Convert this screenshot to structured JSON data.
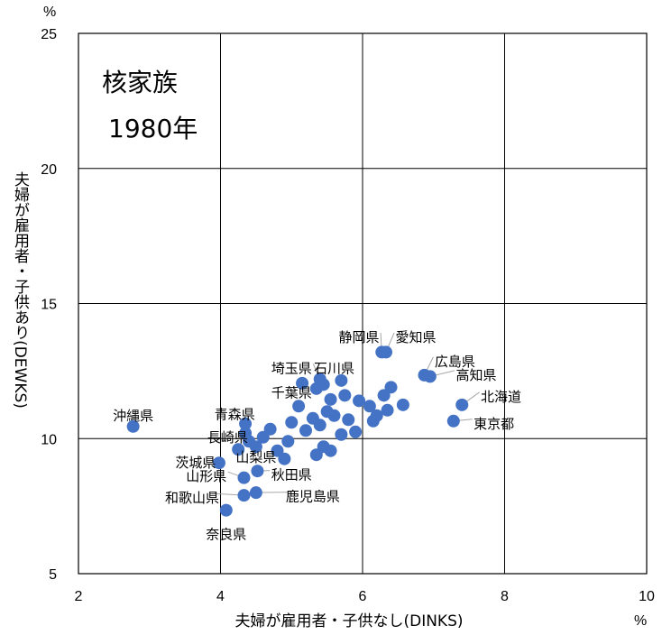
{
  "chart_data": {
    "type": "scatter",
    "xlabel": "夫婦が雇用者・子供なし(DINKS)",
    "ylabel": "夫婦が雇用者・子供あり(DEWKS)",
    "x_unit": "%",
    "y_unit": "%",
    "xlim": [
      2,
      10
    ],
    "ylim": [
      5,
      25
    ],
    "x_ticks": [
      "2",
      "4",
      "6",
      "8",
      "10"
    ],
    "y_ticks": [
      "5",
      "10",
      "15",
      "20",
      "25"
    ],
    "grid": true,
    "annotation": [
      "核家族",
      "1980年"
    ],
    "marker_color": "#4472C4",
    "points": [
      {
        "x": 2.77,
        "y": 10.45,
        "label": "沖縄県",
        "lx": 2.77,
        "ly": 10.85
      },
      {
        "x": 4.08,
        "y": 7.35,
        "label": "奈良県",
        "lx": 4.08,
        "ly": 6.45
      },
      {
        "x": 4.33,
        "y": 7.9,
        "label": "和歌山県",
        "lx": 3.6,
        "ly": 7.8
      },
      {
        "x": 4.5,
        "y": 8.0,
        "label": "鹿児島県",
        "lx": 5.3,
        "ly": 7.85
      },
      {
        "x": 3.98,
        "y": 9.1,
        "label": "茨城県",
        "lx": 3.65,
        "ly": 9.1
      },
      {
        "x": 4.33,
        "y": 8.55,
        "label": "山形県",
        "lx": 3.8,
        "ly": 8.6
      },
      {
        "x": 4.52,
        "y": 8.8,
        "label": "秋田県",
        "lx": 5.0,
        "ly": 8.65
      },
      {
        "x": 4.25,
        "y": 9.6,
        "label": "山梨県",
        "lx": 4.5,
        "ly": 9.3
      },
      {
        "x": 4.35,
        "y": 10.2,
        "label": "長崎県",
        "lx": 4.1,
        "ly": 10.05
      },
      {
        "x": 4.35,
        "y": 10.55,
        "label": "青森県",
        "lx": 4.2,
        "ly": 10.9
      },
      {
        "x": 4.4,
        "y": 9.9,
        "label": "",
        "lx": 0,
        "ly": 0
      },
      {
        "x": 4.5,
        "y": 9.7,
        "label": "",
        "lx": 0,
        "ly": 0
      },
      {
        "x": 4.6,
        "y": 10.05,
        "label": "",
        "lx": 0,
        "ly": 0
      },
      {
        "x": 4.7,
        "y": 10.35,
        "label": "",
        "lx": 0,
        "ly": 0
      },
      {
        "x": 4.8,
        "y": 9.55,
        "label": "",
        "lx": 0,
        "ly": 0
      },
      {
        "x": 4.9,
        "y": 9.25,
        "label": "",
        "lx": 0,
        "ly": 0
      },
      {
        "x": 4.95,
        "y": 9.9,
        "label": "",
        "lx": 0,
        "ly": 0
      },
      {
        "x": 5.0,
        "y": 10.6,
        "label": "",
        "lx": 0,
        "ly": 0
      },
      {
        "x": 5.1,
        "y": 11.2,
        "label": "",
        "lx": 0,
        "ly": 0
      },
      {
        "x": 5.2,
        "y": 10.3,
        "label": "",
        "lx": 0,
        "ly": 0
      },
      {
        "x": 5.3,
        "y": 10.75,
        "label": "",
        "lx": 0,
        "ly": 0
      },
      {
        "x": 5.35,
        "y": 9.4,
        "label": "",
        "lx": 0,
        "ly": 0
      },
      {
        "x": 5.45,
        "y": 9.7,
        "label": "",
        "lx": 0,
        "ly": 0
      },
      {
        "x": 5.55,
        "y": 9.55,
        "label": "",
        "lx": 0,
        "ly": 0
      },
      {
        "x": 5.4,
        "y": 10.5,
        "label": "",
        "lx": 0,
        "ly": 0
      },
      {
        "x": 5.5,
        "y": 11.0,
        "label": "",
        "lx": 0,
        "ly": 0
      },
      {
        "x": 5.6,
        "y": 10.85,
        "label": "",
        "lx": 0,
        "ly": 0
      },
      {
        "x": 5.7,
        "y": 10.15,
        "label": "",
        "lx": 0,
        "ly": 0
      },
      {
        "x": 5.8,
        "y": 10.7,
        "label": "",
        "lx": 0,
        "ly": 0
      },
      {
        "x": 5.9,
        "y": 10.25,
        "label": "",
        "lx": 0,
        "ly": 0
      },
      {
        "x": 5.55,
        "y": 11.45,
        "label": "",
        "lx": 0,
        "ly": 0
      },
      {
        "x": 5.45,
        "y": 12.0,
        "label": "",
        "lx": 0,
        "ly": 0
      },
      {
        "x": 5.35,
        "y": 11.85,
        "label": "千葉県",
        "lx": 5.0,
        "ly": 11.7
      },
      {
        "x": 5.15,
        "y": 12.05,
        "label": "",
        "lx": 0,
        "ly": 0
      },
      {
        "x": 5.75,
        "y": 11.6,
        "label": "",
        "lx": 0,
        "ly": 0
      },
      {
        "x": 5.95,
        "y": 11.4,
        "label": "",
        "lx": 0,
        "ly": 0
      },
      {
        "x": 6.1,
        "y": 11.2,
        "label": "",
        "lx": 0,
        "ly": 0
      },
      {
        "x": 6.2,
        "y": 10.85,
        "label": "",
        "lx": 0,
        "ly": 0
      },
      {
        "x": 6.15,
        "y": 10.65,
        "label": "",
        "lx": 0,
        "ly": 0
      },
      {
        "x": 6.35,
        "y": 11.05,
        "label": "",
        "lx": 0,
        "ly": 0
      },
      {
        "x": 6.3,
        "y": 11.6,
        "label": "",
        "lx": 0,
        "ly": 0
      },
      {
        "x": 6.4,
        "y": 11.9,
        "label": "",
        "lx": 0,
        "ly": 0
      },
      {
        "x": 6.57,
        "y": 11.25,
        "label": "",
        "lx": 0,
        "ly": 0
      },
      {
        "x": 5.4,
        "y": 12.2,
        "label": "埼玉県",
        "lx": 5.0,
        "ly": 12.6
      },
      {
        "x": 5.7,
        "y": 12.15,
        "label": "石川県",
        "lx": 5.6,
        "ly": 12.6
      },
      {
        "x": 6.27,
        "y": 13.2,
        "label": "静岡県",
        "lx": 5.95,
        "ly": 13.75
      },
      {
        "x": 6.33,
        "y": 13.2,
        "label": "愛知県",
        "lx": 6.75,
        "ly": 13.75
      },
      {
        "x": 6.87,
        "y": 12.35,
        "label": "広島県",
        "lx": 7.3,
        "ly": 12.85
      },
      {
        "x": 6.95,
        "y": 12.3,
        "label": "高知県",
        "lx": 7.6,
        "ly": 12.35
      },
      {
        "x": 7.4,
        "y": 11.25,
        "label": "北海道",
        "lx": 7.95,
        "ly": 11.55
      },
      {
        "x": 7.28,
        "y": 10.65,
        "label": "東京都",
        "lx": 7.85,
        "ly": 10.55
      }
    ]
  }
}
